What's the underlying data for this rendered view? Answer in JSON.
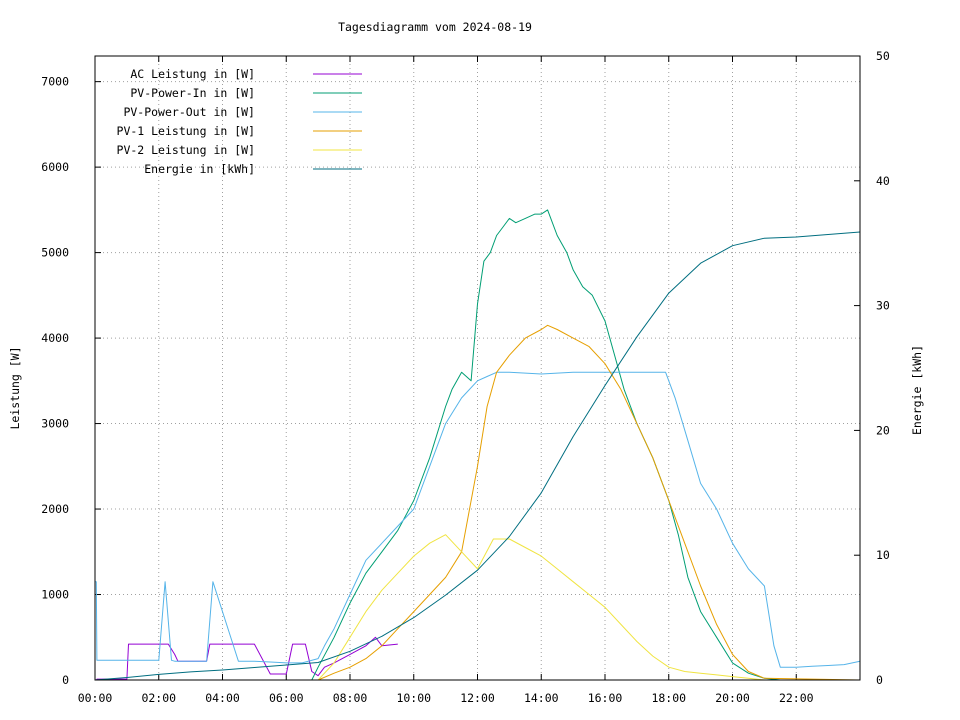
{
  "chart_data": {
    "type": "line",
    "title": "Tagesdiagramm vom 2024-08-19",
    "ylabel": "Leistung [W]",
    "y2label": "Energie [kWh]",
    "xlim": [
      0,
      24
    ],
    "ylim": [
      0,
      7300
    ],
    "y2lim": [
      0,
      50
    ],
    "x_ticks": [
      "00:00",
      "02:00",
      "04:00",
      "06:00",
      "08:00",
      "10:00",
      "12:00",
      "14:00",
      "16:00",
      "18:00",
      "20:00",
      "22:00"
    ],
    "y_ticks": [
      0,
      1000,
      2000,
      3000,
      4000,
      5000,
      6000,
      7000
    ],
    "y2_ticks": [
      0,
      10,
      20,
      30,
      40,
      50
    ],
    "grid": true,
    "legend_position": "top-left",
    "series": [
      {
        "name": "AC Leistung in [W]",
        "color": "#9400d3",
        "axis": "y",
        "x": [
          0,
          0.04,
          0.06,
          1.0,
          1.05,
          2.0,
          2.3,
          2.5,
          2.6,
          3.5,
          3.6,
          5.0,
          5.5,
          6.0,
          6.2,
          6.6,
          6.8,
          7.0,
          7.2,
          7.5,
          8.0,
          8.5,
          8.8,
          9.0,
          9.5
        ],
        "y": [
          0,
          0,
          10,
          10,
          420,
          420,
          420,
          300,
          220,
          220,
          420,
          420,
          70,
          70,
          420,
          420,
          100,
          50,
          150,
          200,
          300,
          400,
          500,
          400,
          420
        ]
      },
      {
        "name": "PV-Power-In in [W]",
        "color": "#009e73",
        "axis": "y",
        "x": [
          0,
          6.8,
          7.0,
          7.5,
          8.0,
          8.5,
          9.0,
          9.5,
          10.0,
          10.5,
          11.0,
          11.2,
          11.5,
          11.8,
          12.0,
          12.2,
          12.4,
          12.6,
          12.8,
          13.0,
          13.2,
          13.5,
          13.8,
          14.0,
          14.2,
          14.5,
          14.8,
          15.0,
          15.3,
          15.6,
          16.0,
          16.3,
          16.6,
          17.0,
          17.5,
          18.0,
          18.3,
          18.6,
          19.0,
          19.5,
          20.0,
          20.5,
          21.0,
          21.5,
          24
        ],
        "y": [
          0,
          0,
          150,
          500,
          900,
          1250,
          1500,
          1750,
          2100,
          2600,
          3200,
          3400,
          3600,
          3500,
          4400,
          4900,
          5000,
          5200,
          5300,
          5400,
          5350,
          5400,
          5450,
          5450,
          5500,
          5200,
          5000,
          4800,
          4600,
          4500,
          4200,
          3800,
          3400,
          3000,
          2600,
          2100,
          1700,
          1200,
          800,
          500,
          200,
          80,
          20,
          0,
          0
        ]
      },
      {
        "name": "PV-Power-Out in [W]",
        "color": "#56b4e9",
        "axis": "y",
        "x": [
          0,
          0.04,
          0.06,
          1.0,
          1.1,
          2.0,
          2.2,
          2.4,
          2.5,
          3.5,
          3.7,
          4.5,
          5.0,
          5.5,
          6.0,
          6.5,
          7.0,
          7.2,
          7.5,
          8.0,
          8.5,
          9.0,
          9.5,
          10.0,
          10.5,
          11.0,
          11.5,
          12.0,
          12.3,
          12.6,
          13.0,
          14.0,
          15.0,
          16.0,
          17.0,
          17.9,
          18.2,
          18.6,
          19.0,
          19.5,
          20.0,
          20.5,
          21.0,
          21.3,
          21.5,
          22.0,
          22.5,
          23.0,
          23.5,
          24
        ],
        "y": [
          1150,
          1150,
          230,
          230,
          230,
          230,
          1150,
          230,
          220,
          220,
          1150,
          220,
          220,
          210,
          200,
          200,
          250,
          400,
          600,
          1000,
          1400,
          1600,
          1800,
          2000,
          2500,
          3000,
          3300,
          3500,
          3550,
          3600,
          3600,
          3580,
          3600,
          3600,
          3600,
          3600,
          3300,
          2800,
          2300,
          2000,
          1600,
          1300,
          1100,
          400,
          150,
          150,
          160,
          170,
          180,
          220
        ]
      },
      {
        "name": "PV-1 Leistung in [W]",
        "color": "#e69f00",
        "axis": "y",
        "x": [
          0,
          7.0,
          7.5,
          8.0,
          8.5,
          9.0,
          9.5,
          10.0,
          10.5,
          11.0,
          11.5,
          12.0,
          12.3,
          12.6,
          13.0,
          13.5,
          14.0,
          14.2,
          14.5,
          15.0,
          15.5,
          16.0,
          16.5,
          17.0,
          17.5,
          18.0,
          18.5,
          19.0,
          19.5,
          20.0,
          20.5,
          21.0,
          24
        ],
        "y": [
          0,
          0,
          80,
          150,
          250,
          400,
          600,
          800,
          1000,
          1200,
          1500,
          2500,
          3200,
          3600,
          3800,
          4000,
          4100,
          4150,
          4100,
          4000,
          3900,
          3700,
          3400,
          3000,
          2600,
          2100,
          1600,
          1100,
          650,
          300,
          100,
          20,
          0
        ]
      },
      {
        "name": "PV-2 Leistung in [W]",
        "color": "#f0e442",
        "axis": "y",
        "x": [
          0,
          7.0,
          7.5,
          8.0,
          8.5,
          9.0,
          9.5,
          10.0,
          10.5,
          11.0,
          11.5,
          12.0,
          12.5,
          13.0,
          13.5,
          14.0,
          14.5,
          15.0,
          15.5,
          16.0,
          16.5,
          17.0,
          17.5,
          18.0,
          18.5,
          19.0,
          19.5,
          20.0,
          20.5,
          21.0,
          24
        ],
        "y": [
          0,
          0,
          200,
          500,
          800,
          1050,
          1250,
          1450,
          1600,
          1700,
          1500,
          1300,
          1650,
          1650,
          1550,
          1450,
          1300,
          1150,
          1000,
          850,
          650,
          450,
          280,
          150,
          100,
          80,
          60,
          40,
          20,
          0,
          0
        ]
      },
      {
        "name": "Energie in [kWh]",
        "color": "#006e80",
        "axis": "y2",
        "x": [
          0,
          1,
          2,
          3,
          4,
          5,
          6,
          7,
          8,
          9,
          10,
          11,
          12,
          13,
          14,
          15,
          16,
          17,
          18,
          19,
          20,
          21,
          22,
          23,
          24
        ],
        "y": [
          0,
          0.2,
          0.45,
          0.65,
          0.8,
          1.0,
          1.2,
          1.4,
          2.3,
          3.5,
          5.0,
          6.8,
          8.8,
          11.5,
          15.0,
          19.5,
          23.6,
          27.5,
          31.0,
          33.4,
          34.8,
          35.4,
          35.5,
          35.7,
          35.9
        ]
      }
    ]
  }
}
